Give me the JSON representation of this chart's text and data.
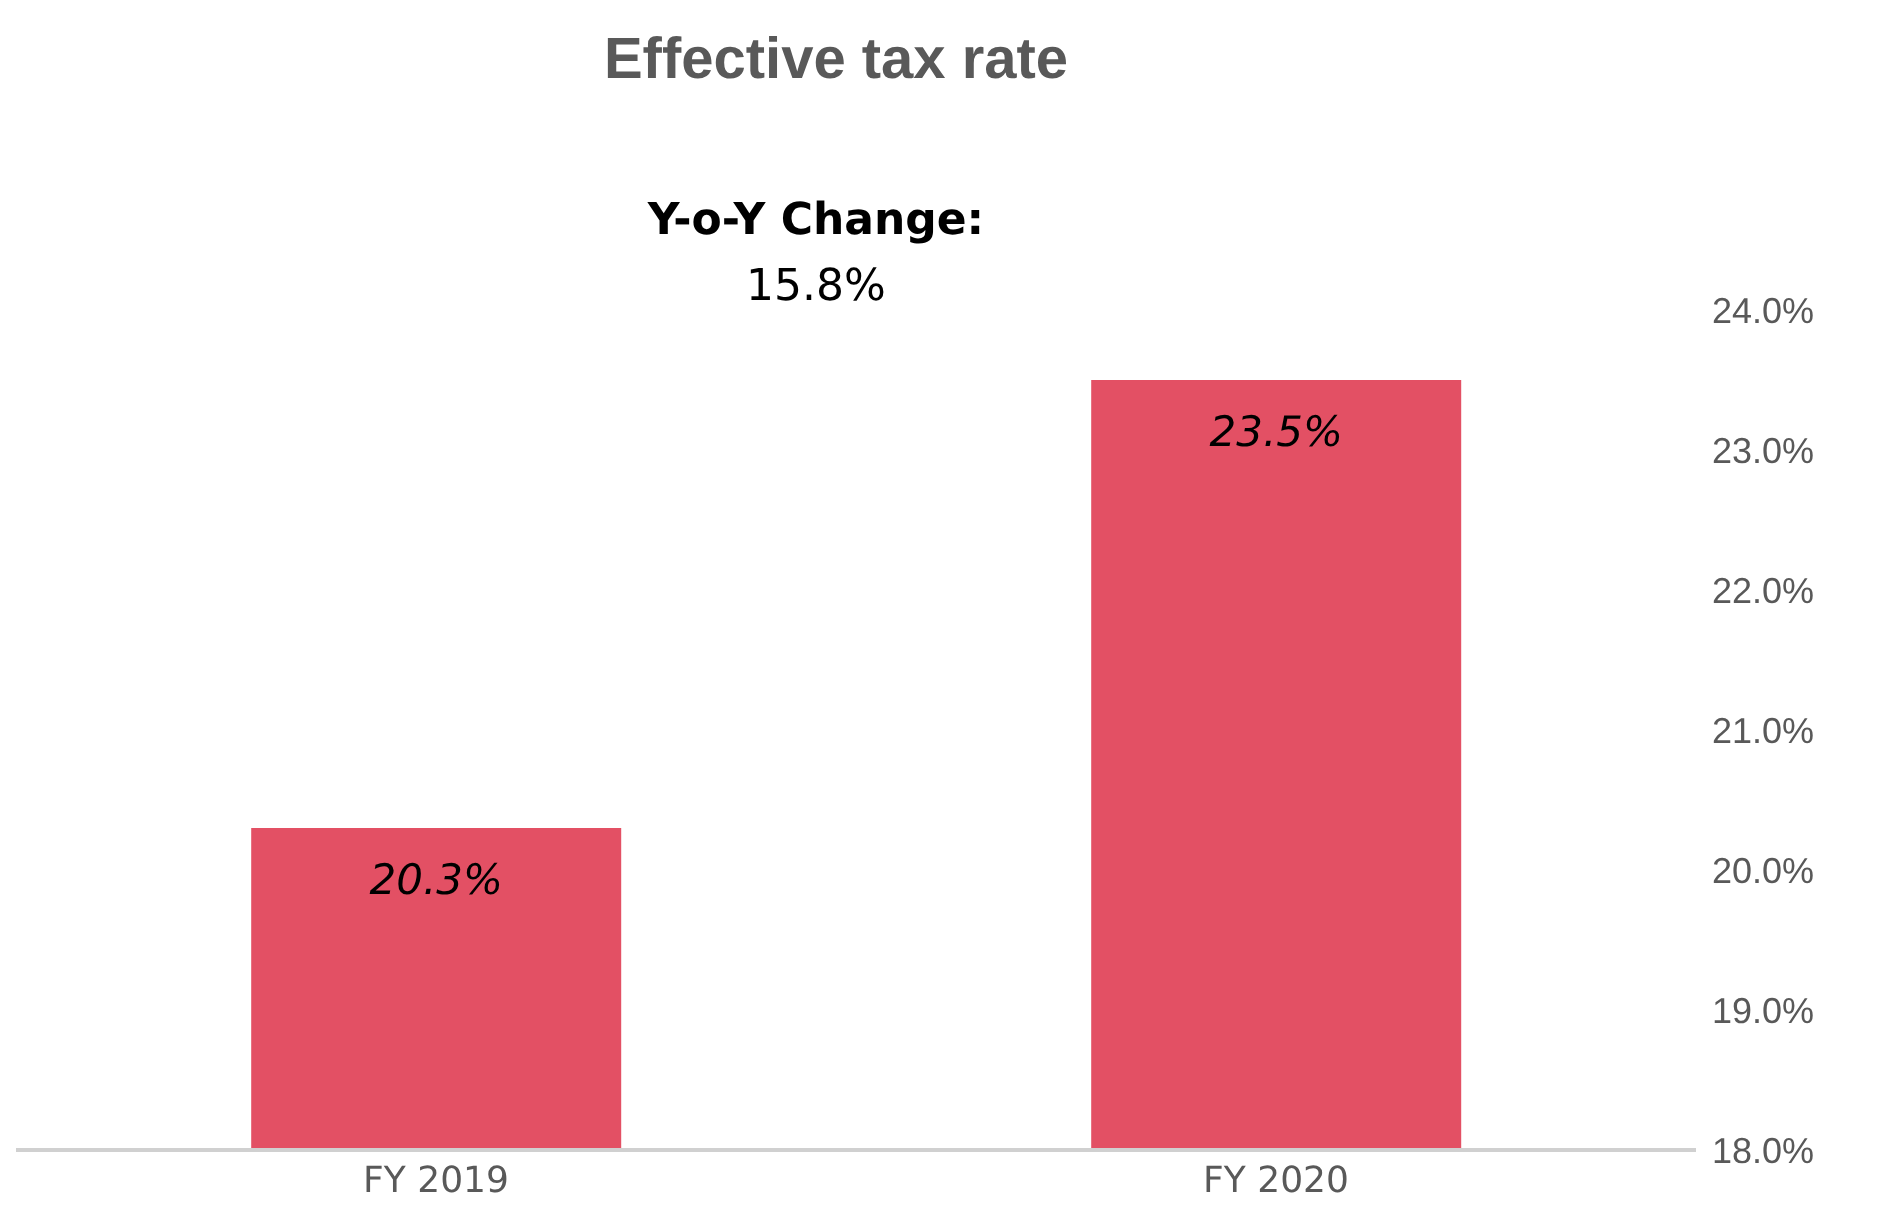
{
  "chart_data": {
    "type": "bar",
    "title": "Effective tax rate",
    "annotations": [
      "Y-o-Y Change:",
      "15.8%"
    ],
    "categories": [
      "FY 2019",
      "FY 2020"
    ],
    "values": [
      20.3,
      23.5
    ],
    "value_labels": [
      "20.3%",
      "23.5%"
    ],
    "color": "#e35064",
    "ylim": [
      18,
      24
    ],
    "yticks": [
      {
        "value": 18,
        "label": "18.0%"
      },
      {
        "value": 19,
        "label": "19.0%"
      },
      {
        "value": 20,
        "label": "20.0%"
      },
      {
        "value": 21,
        "label": "21.0%"
      },
      {
        "value": 22,
        "label": "22.0%"
      },
      {
        "value": 23,
        "label": "23.0%"
      },
      {
        "value": 24,
        "label": "24.0%"
      }
    ],
    "grid": false,
    "legend": false
  }
}
